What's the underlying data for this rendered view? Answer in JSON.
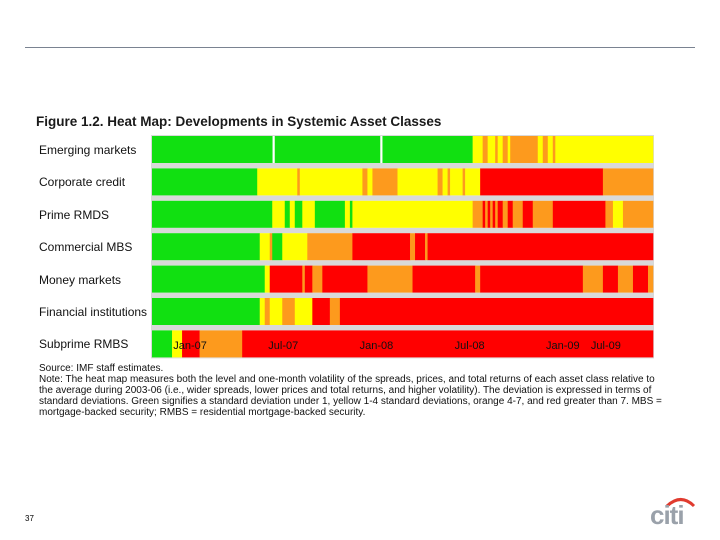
{
  "page": {
    "number": "37"
  },
  "figure": {
    "title": "Figure 1.2. Heat Map: Developments in Systemic Asset Classes",
    "source": "Source: IMF staff estimates.",
    "note": "Note: The heat map measures both the level and one-month volatility of the spreads, prices, and total returns of each asset class relative to the average during 2003-06 (i.e., wider spreads, lower prices and total returns, and higher volatility). The deviation is expressed in terms of standard deviations. Green signifies a standard deviation under 1, yellow 1-4 standard deviations, orange 4-7, and red greater than 7. MBS = mortgage-backed security; RMBS = residential mortgage-backed security."
  },
  "logo": {
    "text": "citi",
    "text_color": "#9aa1aa",
    "arc_color": "#e03b2f"
  },
  "chart_data": {
    "type": "heatmap",
    "title": "Heat Map: Developments in Systemic Asset Classes",
    "x_ticks": [
      "Jan-07",
      "Jul-07",
      "Jan-08",
      "Jul-08",
      "Jan-09",
      "Jul-09"
    ],
    "x_range": [
      "Sep-06",
      "Nov-09"
    ],
    "x_range_fractions": [
      0,
      1
    ],
    "tick_fractions": [
      0.074,
      0.26,
      0.446,
      0.632,
      0.818,
      0.904
    ],
    "color_scale": {
      "green": "#11e011",
      "yellow": "#ffff00",
      "orange": "#fd9a1d",
      "red": "#ff0000"
    },
    "legend_meaning": {
      "green": "under 1 standard deviation",
      "yellow": "1-4 standard deviations",
      "orange": "4-7 standard deviations",
      "red": "greater than 7 standard deviations"
    },
    "rows": [
      {
        "name": "Emerging markets",
        "segments": [
          [
            "green",
            0.0,
            0.24
          ],
          [
            "green",
            0.245,
            0.455
          ],
          [
            "green",
            0.46,
            0.64
          ],
          [
            "yellow",
            0.64,
            0.66
          ],
          [
            "orange",
            0.66,
            0.67
          ],
          [
            "yellow",
            0.67,
            0.685
          ],
          [
            "orange",
            0.685,
            0.69
          ],
          [
            "yellow",
            0.69,
            0.7
          ],
          [
            "orange",
            0.7,
            0.71
          ],
          [
            "yellow",
            0.71,
            0.715
          ],
          [
            "orange",
            0.715,
            0.72
          ],
          [
            "yellow",
            0.72,
            0.72
          ],
          [
            "orange",
            0.72,
            0.77
          ],
          [
            "yellow",
            0.77,
            0.78
          ],
          [
            "orange",
            0.78,
            0.79
          ],
          [
            "yellow",
            0.79,
            0.8
          ],
          [
            "orange",
            0.8,
            0.805
          ],
          [
            "yellow",
            0.805,
            0.83
          ],
          [
            "yellow",
            0.83,
            1.0
          ]
        ]
      },
      {
        "name": "Corporate credit",
        "segments": [
          [
            "green",
            0.0,
            0.21
          ],
          [
            "yellow",
            0.21,
            0.29
          ],
          [
            "orange",
            0.29,
            0.295
          ],
          [
            "yellow",
            0.295,
            0.42
          ],
          [
            "orange",
            0.42,
            0.43
          ],
          [
            "yellow",
            0.43,
            0.44
          ],
          [
            "orange",
            0.44,
            0.49
          ],
          [
            "yellow",
            0.49,
            0.57
          ],
          [
            "orange",
            0.57,
            0.58
          ],
          [
            "yellow",
            0.58,
            0.59
          ],
          [
            "orange",
            0.59,
            0.595
          ],
          [
            "yellow",
            0.595,
            0.62
          ],
          [
            "orange",
            0.62,
            0.625
          ],
          [
            "yellow",
            0.625,
            0.655
          ],
          [
            "red",
            0.655,
            0.9
          ],
          [
            "orange",
            0.9,
            1.0
          ]
        ]
      },
      {
        "name": "Prime RMDS",
        "segments": [
          [
            "green",
            0.0,
            0.24
          ],
          [
            "yellow",
            0.24,
            0.265
          ],
          [
            "green",
            0.265,
            0.275
          ],
          [
            "yellow",
            0.275,
            0.285
          ],
          [
            "green",
            0.285,
            0.3
          ],
          [
            "yellow",
            0.3,
            0.325
          ],
          [
            "green",
            0.325,
            0.385
          ],
          [
            "yellow",
            0.385,
            0.395
          ],
          [
            "green",
            0.395,
            0.4
          ],
          [
            "yellow",
            0.4,
            0.64
          ],
          [
            "orange",
            0.64,
            0.66
          ],
          [
            "red",
            0.66,
            0.665
          ],
          [
            "orange",
            0.665,
            0.67
          ],
          [
            "red",
            0.67,
            0.675
          ],
          [
            "orange",
            0.675,
            0.68
          ],
          [
            "red",
            0.68,
            0.685
          ],
          [
            "orange",
            0.685,
            0.69
          ],
          [
            "red",
            0.69,
            0.7
          ],
          [
            "orange",
            0.7,
            0.71
          ],
          [
            "red",
            0.71,
            0.72
          ],
          [
            "orange",
            0.72,
            0.74
          ],
          [
            "red",
            0.74,
            0.76
          ],
          [
            "orange",
            0.76,
            0.8
          ],
          [
            "red",
            0.8,
            0.905
          ],
          [
            "orange",
            0.905,
            0.92
          ],
          [
            "yellow",
            0.92,
            0.94
          ],
          [
            "orange",
            0.94,
            1.0
          ]
        ]
      },
      {
        "name": "Commercial MBS",
        "segments": [
          [
            "green",
            0.0,
            0.215
          ],
          [
            "yellow",
            0.215,
            0.235
          ],
          [
            "orange",
            0.235,
            0.24
          ],
          [
            "green",
            0.24,
            0.26
          ],
          [
            "yellow",
            0.26,
            0.31
          ],
          [
            "orange",
            0.31,
            0.4
          ],
          [
            "red",
            0.4,
            0.515
          ],
          [
            "orange",
            0.515,
            0.525
          ],
          [
            "red",
            0.525,
            0.545
          ],
          [
            "orange",
            0.545,
            0.55
          ],
          [
            "red",
            0.55,
            1.0
          ]
        ]
      },
      {
        "name": "Money markets",
        "segments": [
          [
            "green",
            0.0,
            0.225
          ],
          [
            "yellow",
            0.225,
            0.235
          ],
          [
            "red",
            0.235,
            0.3
          ],
          [
            "orange",
            0.3,
            0.305
          ],
          [
            "red",
            0.305,
            0.32
          ],
          [
            "orange",
            0.32,
            0.34
          ],
          [
            "red",
            0.34,
            0.43
          ],
          [
            "orange",
            0.43,
            0.52
          ],
          [
            "red",
            0.52,
            0.645
          ],
          [
            "orange",
            0.645,
            0.655
          ],
          [
            "red",
            0.655,
            0.86
          ],
          [
            "orange",
            0.86,
            0.9
          ],
          [
            "red",
            0.9,
            0.93
          ],
          [
            "orange",
            0.93,
            0.96
          ],
          [
            "red",
            0.96,
            0.99
          ],
          [
            "orange",
            0.99,
            1.0
          ]
        ]
      },
      {
        "name": "Financial institutions",
        "segments": [
          [
            "green",
            0.0,
            0.215
          ],
          [
            "yellow",
            0.215,
            0.225
          ],
          [
            "orange",
            0.225,
            0.235
          ],
          [
            "yellow",
            0.235,
            0.26
          ],
          [
            "orange",
            0.26,
            0.285
          ],
          [
            "yellow",
            0.285,
            0.32
          ],
          [
            "red",
            0.32,
            0.355
          ],
          [
            "orange",
            0.355,
            0.375
          ],
          [
            "red",
            0.375,
            1.0
          ]
        ]
      },
      {
        "name": "Subprime RMBS",
        "segments": [
          [
            "green",
            0.0,
            0.04
          ],
          [
            "yellow",
            0.04,
            0.06
          ],
          [
            "red",
            0.06,
            0.095
          ],
          [
            "orange",
            0.095,
            0.18
          ],
          [
            "red",
            0.18,
            1.0
          ]
        ]
      }
    ]
  }
}
